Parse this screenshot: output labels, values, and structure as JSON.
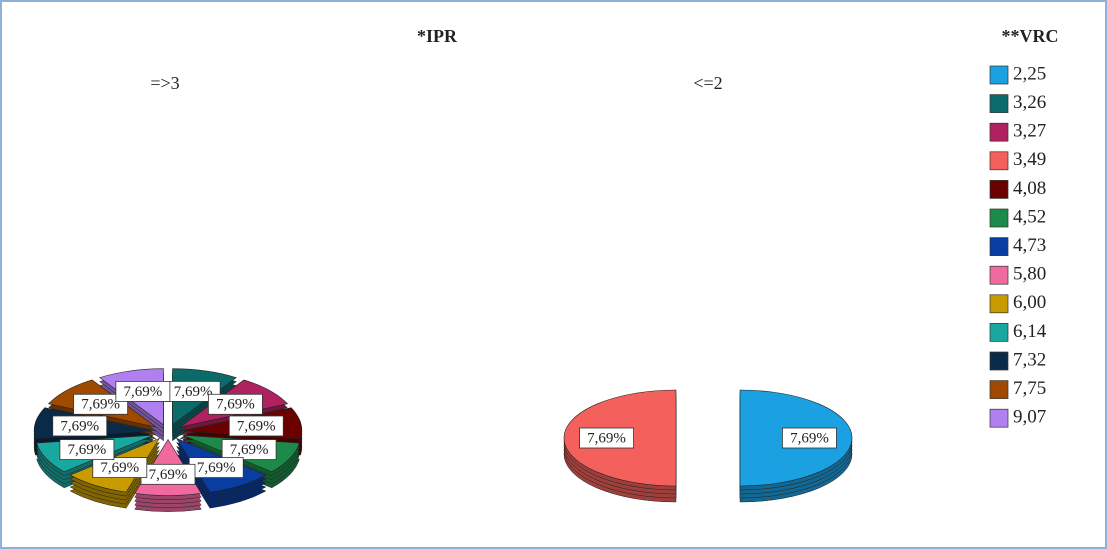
{
  "chart_data": {
    "type": "pie",
    "title": "*IPR",
    "legend_title": "**VRC",
    "categories": [
      "2,25",
      "3,26",
      "3,27",
      "3,49",
      "4,08",
      "4,52",
      "4,73",
      "5,80",
      "6,00",
      "6,14",
      "7,32",
      "7,75",
      "9,07"
    ],
    "colors": [
      "#1ba0e2",
      "#0b6b6b",
      "#b0225f",
      "#f4615c",
      "#6b0000",
      "#1e8a4a",
      "#0a3da0",
      "#f06aa0",
      "#c89c00",
      "#19a8a0",
      "#0a2a4a",
      "#a04a00",
      "#b080f0"
    ],
    "series": [
      {
        "name": "=>3",
        "values": [
          null,
          7.69,
          7.69,
          null,
          7.69,
          7.69,
          7.69,
          7.69,
          7.69,
          7.69,
          7.69,
          7.69,
          7.69
        ],
        "value_labels": [
          null,
          "7,69%",
          "7,69%",
          null,
          "7,69%",
          "7,69%",
          "7,69%",
          "7,69%",
          "7,69%",
          "7,69%",
          "7,69%",
          "7,69%",
          "7,69%"
        ]
      },
      {
        "name": "<=2",
        "values": [
          7.69,
          null,
          null,
          7.69,
          null,
          null,
          null,
          null,
          null,
          null,
          null,
          null,
          null
        ],
        "value_labels": [
          "7,69%",
          null,
          null,
          "7,69%",
          null,
          null,
          null,
          null,
          null,
          null,
          null,
          null,
          null
        ]
      }
    ]
  }
}
